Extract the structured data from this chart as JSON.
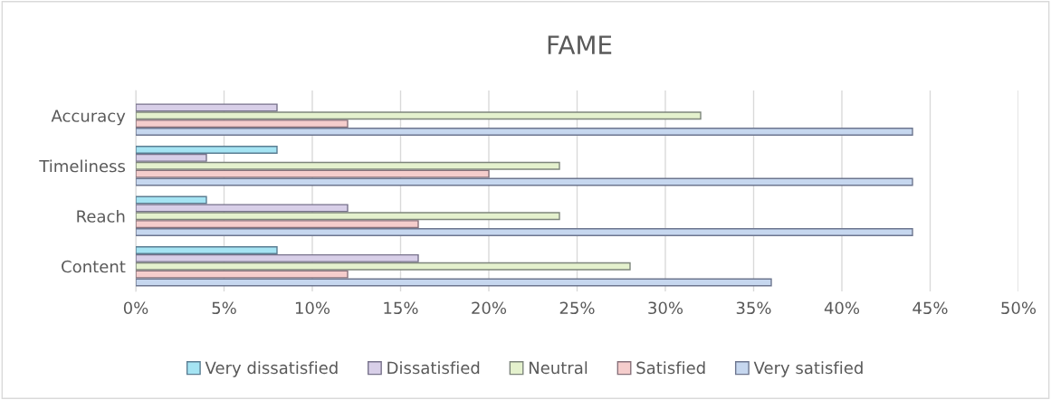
{
  "chart_data": {
    "type": "bar",
    "orientation": "horizontal",
    "title": "FAME",
    "categories": [
      "Accuracy",
      "Timeliness",
      "Reach",
      "Content"
    ],
    "series": [
      {
        "name": "Very dissatisfied",
        "color": "#a5e4f3",
        "values": [
          0,
          8,
          4,
          8
        ]
      },
      {
        "name": "Dissatisfied",
        "color": "#d8cfe8",
        "values": [
          8,
          4,
          12,
          16
        ]
      },
      {
        "name": "Neutral",
        "color": "#e4f1cd",
        "values": [
          32,
          24,
          24,
          28
        ]
      },
      {
        "name": "Satisfied",
        "color": "#f5cdcc",
        "values": [
          12,
          20,
          16,
          12
        ]
      },
      {
        "name": "Very satisfied",
        "color": "#c6d7ef",
        "values": [
          44,
          44,
          44,
          36
        ]
      }
    ],
    "xlim": [
      0,
      50
    ],
    "xticks": [
      {
        "value": 0,
        "label": "0%"
      },
      {
        "value": 5,
        "label": "5%"
      },
      {
        "value": 10,
        "label": "10%"
      },
      {
        "value": 15,
        "label": "15%"
      },
      {
        "value": 20,
        "label": "20%"
      },
      {
        "value": 25,
        "label": "25%"
      },
      {
        "value": 30,
        "label": "30%"
      },
      {
        "value": 35,
        "label": "35%"
      },
      {
        "value": 40,
        "label": "40%"
      },
      {
        "value": 45,
        "label": "45%"
      },
      {
        "value": 50,
        "label": "50%"
      }
    ],
    "grid": "x",
    "legend": "bottom"
  }
}
